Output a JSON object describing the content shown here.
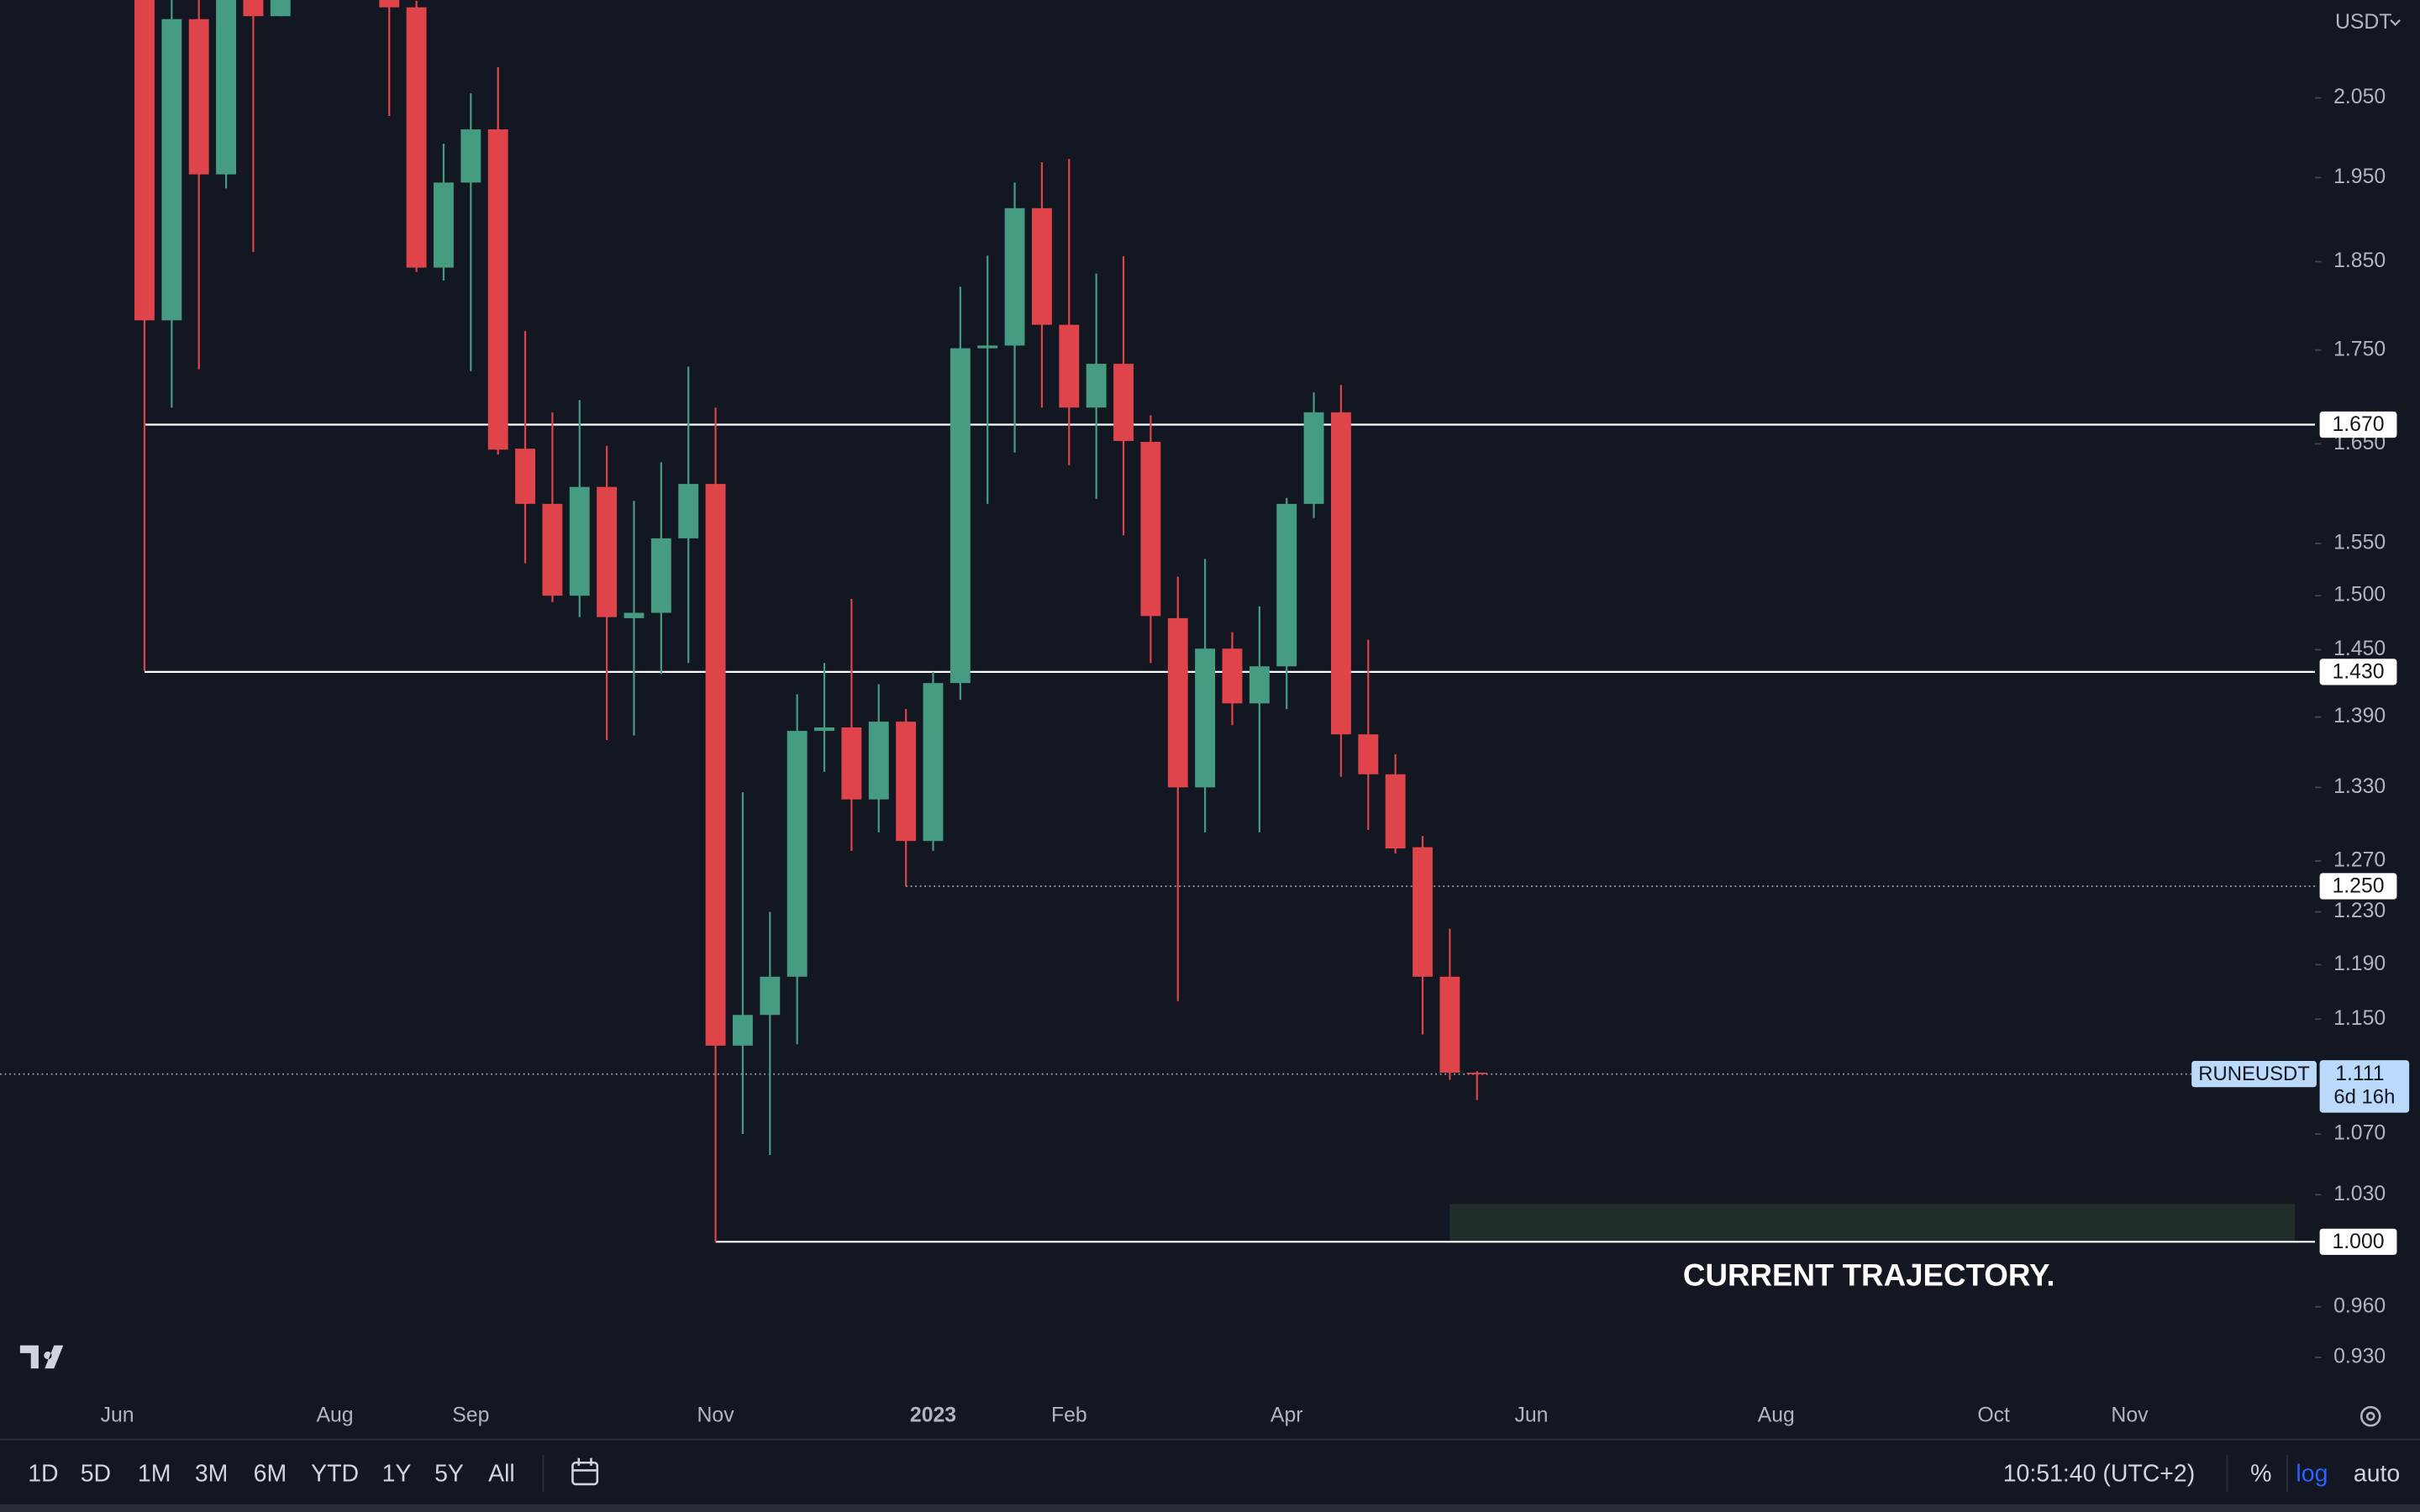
{
  "chart_data": {
    "type": "candlestick",
    "currency": "USDT",
    "symbol": "RUNEUSDT",
    "log_scale": true,
    "up_color": "#459c83",
    "down_color": "#e0444b",
    "categories": [
      "Jun",
      null,
      null,
      null,
      null,
      null,
      null,
      null,
      "Aug",
      null,
      null,
      null,
      null,
      "Sep",
      null,
      null,
      null,
      null,
      null,
      null,
      null,
      null,
      "Nov",
      null,
      null,
      null,
      null,
      null,
      null,
      null,
      "2023",
      null,
      null,
      null,
      null,
      "Feb",
      null,
      null,
      null,
      null,
      null,
      null,
      null,
      "Apr",
      null,
      null,
      null,
      null,
      null,
      null,
      null,
      null,
      "Jun",
      null,
      null,
      null,
      null,
      null,
      null,
      null,
      null,
      "Aug",
      null,
      null,
      null,
      null,
      null,
      null,
      null,
      "Oct",
      null,
      null,
      null,
      null,
      "Nov",
      null,
      null,
      null,
      null,
      null,
      null
    ],
    "open": [
      null,
      2.25,
      1.783,
      2.154,
      1.954,
      2.2,
      2.158,
      null,
      null,
      null,
      2.25,
      2.17,
      1.843,
      1.944,
      2.01,
      1.645,
      1.589,
      1.5,
      1.606,
      1.479,
      1.484,
      1.555,
      1.609,
      1.131,
      1.153,
      1.181,
      1.378,
      1.381,
      1.32,
      1.386,
      1.286,
      1.42,
      1.752,
      1.755,
      1.913,
      1.778,
      1.688,
      1.735,
      1.652,
      1.479,
      1.33,
      1.451,
      1.402,
      1.435,
      1.589,
      1.683,
      1.375,
      1.341,
      1.281,
      1.181,
      1.112,
      null,
      null,
      null,
      null,
      null,
      null,
      null,
      null,
      null,
      null,
      null,
      null,
      null,
      null,
      null,
      null,
      null,
      null,
      null,
      null,
      null,
      null,
      null,
      null,
      null,
      null,
      null,
      null,
      null,
      null
    ],
    "high": [
      null,
      2.3,
      2.2,
      2.2,
      2.25,
      2.25,
      2.25,
      null,
      null,
      null,
      2.3,
      2.179,
      1.992,
      2.056,
      2.09,
      1.771,
      1.683,
      1.696,
      1.648,
      1.592,
      1.631,
      1.732,
      1.688,
      1.326,
      1.23,
      1.41,
      1.438,
      1.497,
      1.419,
      1.397,
      1.43,
      1.821,
      1.857,
      1.944,
      1.969,
      1.973,
      1.836,
      1.856,
      1.68,
      1.518,
      1.535,
      1.466,
      1.49,
      1.595,
      1.704,
      1.712,
      1.459,
      1.358,
      1.29,
      1.217,
      1.113,
      null,
      null,
      null,
      null,
      null,
      null,
      null,
      null,
      null,
      null,
      null,
      null,
      null,
      null,
      null,
      null,
      null,
      null,
      null,
      null,
      null,
      null,
      null,
      null,
      null,
      null,
      null,
      null,
      null,
      null
    ],
    "low": [
      null,
      1.431,
      1.688,
      1.729,
      1.937,
      1.861,
      2.158,
      null,
      null,
      null,
      2.027,
      1.838,
      1.828,
      1.727,
      1.639,
      1.531,
      1.494,
      1.48,
      1.37,
      1.374,
      1.428,
      1.438,
      1.0,
      1.07,
      1.056,
      1.132,
      1.343,
      1.278,
      1.293,
      1.25,
      1.278,
      1.405,
      1.589,
      1.641,
      1.688,
      1.628,
      1.594,
      1.558,
      1.438,
      1.163,
      1.293,
      1.383,
      1.293,
      1.397,
      1.575,
      1.339,
      1.295,
      1.276,
      1.139,
      1.107,
      1.093,
      null,
      null,
      null,
      null,
      null,
      null,
      null,
      null,
      null,
      null,
      null,
      null,
      null,
      null,
      null,
      null,
      null,
      null,
      null,
      null,
      null,
      null,
      null,
      null,
      null,
      null,
      null,
      null,
      null,
      null
    ],
    "close": [
      null,
      1.783,
      2.154,
      1.954,
      2.2,
      2.158,
      2.2,
      null,
      null,
      null,
      2.17,
      1.843,
      1.944,
      2.01,
      1.644,
      1.589,
      1.5,
      1.606,
      1.48,
      1.484,
      1.555,
      1.609,
      1.131,
      1.153,
      1.181,
      1.378,
      1.381,
      1.32,
      1.386,
      1.286,
      1.42,
      1.752,
      1.755,
      1.913,
      1.778,
      1.688,
      1.735,
      1.653,
      1.481,
      1.33,
      1.451,
      1.402,
      1.435,
      1.589,
      1.683,
      1.375,
      1.341,
      1.28,
      1.181,
      1.112,
      1.111,
      null,
      null,
      null,
      null,
      null,
      null,
      null,
      null,
      null,
      null,
      null,
      null,
      null,
      null,
      null,
      null,
      null,
      null,
      null,
      null,
      null,
      null,
      null,
      null,
      null,
      null,
      null,
      null,
      null,
      null
    ],
    "ylim": [
      0.912,
      2.18
    ],
    "yticks": [
      {
        "value": 2.05,
        "label": "2.050"
      },
      {
        "value": 1.95,
        "label": "1.950"
      },
      {
        "value": 1.85,
        "label": "1.850"
      },
      {
        "value": 1.75,
        "label": "1.750"
      },
      {
        "value": 1.65,
        "label": "1.650"
      },
      {
        "value": 1.55,
        "label": "1.550"
      },
      {
        "value": 1.5,
        "label": "1.500"
      },
      {
        "value": 1.45,
        "label": "1.450"
      },
      {
        "value": 1.39,
        "label": "1.390"
      },
      {
        "value": 1.33,
        "label": "1.330"
      },
      {
        "value": 1.27,
        "label": "1.270"
      },
      {
        "value": 1.23,
        "label": "1.230"
      },
      {
        "value": 1.19,
        "label": "1.190"
      },
      {
        "value": 1.15,
        "label": "1.150"
      },
      {
        "value": 1.07,
        "label": "1.070"
      },
      {
        "value": 1.03,
        "label": "1.030"
      },
      {
        "value": 0.96,
        "label": "0.960"
      },
      {
        "value": 0.93,
        "label": "0.930"
      }
    ],
    "horizontal_lines": [
      {
        "value": 1.67,
        "label": "1.670",
        "style": "solid"
      },
      {
        "value": 1.43,
        "label": "1.430",
        "style": "solid"
      },
      {
        "value": 1.25,
        "label": "1.250",
        "style": "dotted"
      },
      {
        "value": 1,
        "label": "1.000",
        "style": "solid"
      }
    ],
    "last_price": {
      "value": 1.111,
      "label": "1.111",
      "countdown": "6d 16h"
    },
    "zone": {
      "top": 1.024,
      "bottom": 1,
      "color": "#1f2e2a"
    },
    "annotation": "CURRENT TRAJECTORY."
  },
  "toolbar": {
    "ranges": [
      "1D",
      "5D",
      "1M",
      "3M",
      "6M",
      "YTD",
      "1Y",
      "5Y",
      "All"
    ],
    "time": "10:51:40 (UTC+2)",
    "percent": "%",
    "log": "log",
    "auto": "auto"
  }
}
